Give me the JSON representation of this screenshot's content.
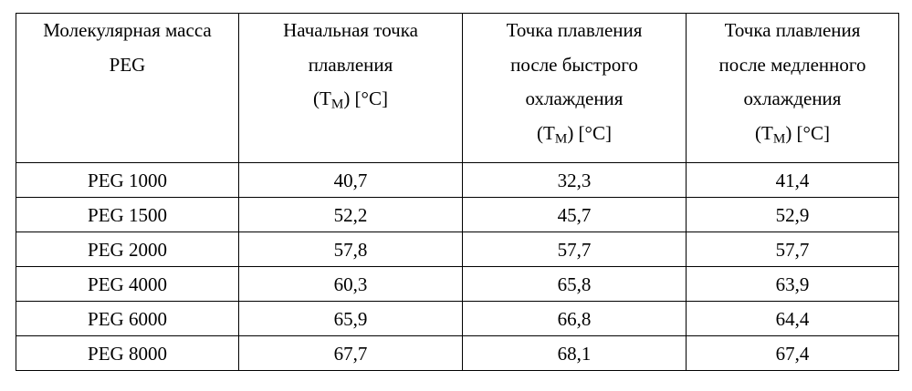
{
  "table": {
    "headers": [
      {
        "lines": [
          "Молекулярная масса",
          "PEG"
        ]
      },
      {
        "lines": [
          "Начальная точка",
          "плавления",
          "(T",
          "M",
          ") [°C]"
        ]
      },
      {
        "lines": [
          "Точка плавления",
          "после быстрого",
          "охлаждения",
          "(T",
          "M",
          ") [°C]"
        ]
      },
      {
        "lines": [
          "Точка плавления",
          "после медленного",
          "охлаждения",
          "(T",
          "M",
          ") [°C]"
        ]
      }
    ],
    "rows": [
      [
        "PEG 1000",
        "40,7",
        "32,3",
        "41,4"
      ],
      [
        "PEG 1500",
        "52,2",
        "45,7",
        "52,9"
      ],
      [
        "PEG 2000",
        "57,8",
        "57,7",
        "57,7"
      ],
      [
        "PEG 4000",
        "60,3",
        "65,8",
        "63,9"
      ],
      [
        "PEG 6000",
        "65,9",
        "66,8",
        "64,4"
      ],
      [
        "PEG 8000",
        "67,7",
        "68,1",
        "67,4"
      ]
    ]
  }
}
